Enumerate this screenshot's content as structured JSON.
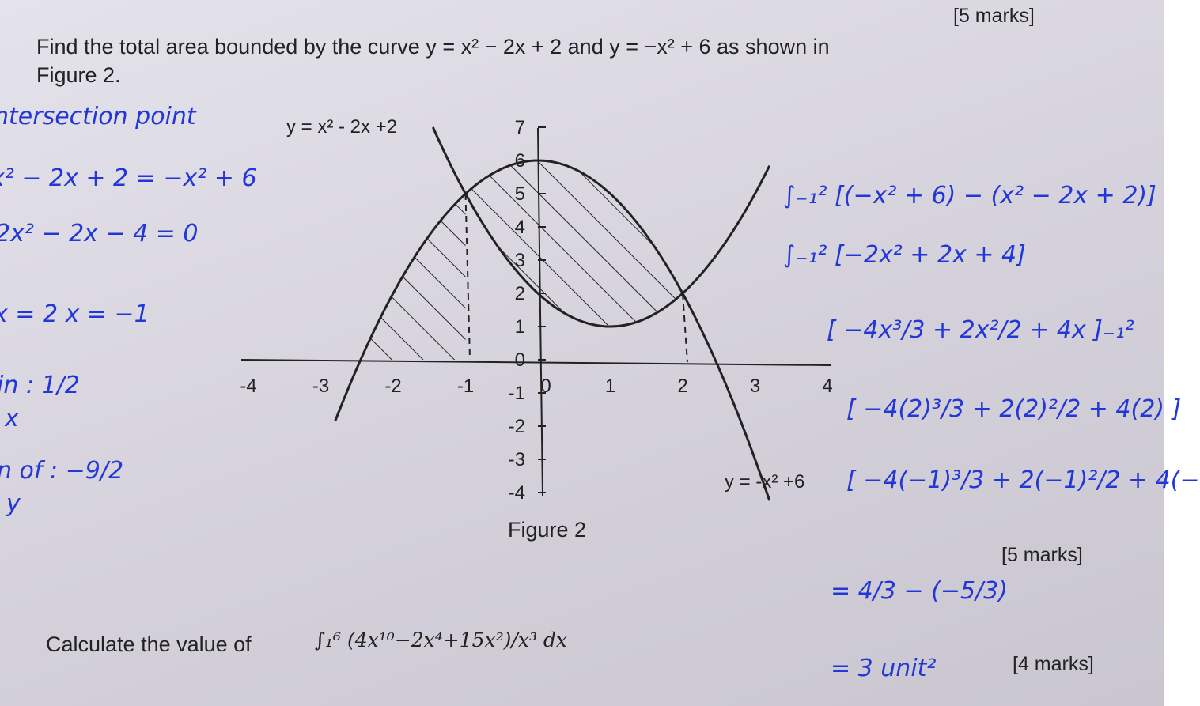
{
  "header": {
    "marks": "[5 marks]"
  },
  "question1": {
    "text": "Find the total area bounded by the curve y = x² − 2x + 2 and y = −x² + 6 as shown in",
    "text_line2": "Figure 2."
  },
  "figure": {
    "curve_labels": [
      "y = x² - 2x +2",
      "y = -x² +6"
    ],
    "x_ticks": [
      "-4",
      "-3",
      "-2",
      "-1",
      "0",
      "1",
      "2",
      "3",
      "4"
    ],
    "y_ticks": [
      "-4",
      "-3",
      "-2",
      "-1",
      "0",
      "1",
      "2",
      "3",
      "4",
      "5",
      "6",
      "7"
    ],
    "caption": "Figure 2"
  },
  "marks_2": "[5 marks]",
  "question2": {
    "text": "Calculate the value of",
    "integral": "∫₁⁶ (4x¹⁰−2x⁴+15x²)/x³ dx"
  },
  "marks_3": "[4 marks]",
  "handwriting": {
    "left": [
      "ntersection point",
      "x² − 2x + 2 = −x² + 6",
      "2x² − 2x − 4 = 0",
      "x = 2    x = −1",
      "in : 1/2",
      "x",
      "n of : −9/2",
      "y"
    ],
    "right": [
      "∫₋₁² [(−x² + 6) − (x² − 2x + 2)]",
      "∫₋₁² [−2x² + 2x + 4]",
      "[ −4x³/3 + 2x²/2 + 4x ]₋₁²",
      "[ −4(2)³/3 + 2(2)²/2 + 4(2) ]",
      "[ −4(−1)³/3 + 2(−1)²/2 + 4(−",
      "= 4/3 − (−5/3)",
      "= 3 unit²"
    ]
  }
}
